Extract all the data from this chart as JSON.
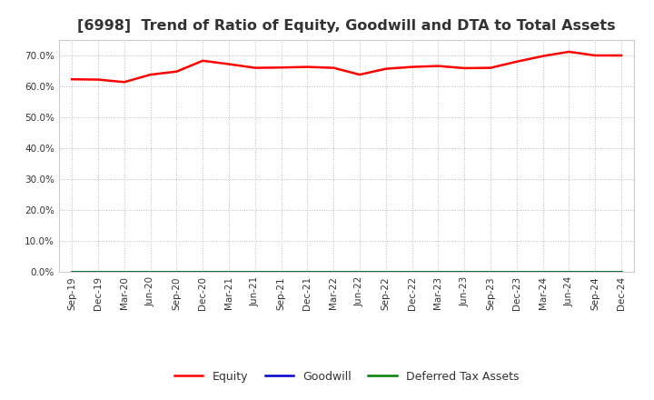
{
  "title": "[6998]  Trend of Ratio of Equity, Goodwill and DTA to Total Assets",
  "x_labels": [
    "Sep-19",
    "Dec-19",
    "Mar-20",
    "Jun-20",
    "Sep-20",
    "Dec-20",
    "Mar-21",
    "Jun-21",
    "Sep-21",
    "Dec-21",
    "Mar-22",
    "Jun-22",
    "Sep-22",
    "Dec-22",
    "Mar-23",
    "Jun-23",
    "Sep-23",
    "Dec-23",
    "Mar-24",
    "Jun-24",
    "Sep-24",
    "Dec-24"
  ],
  "equity": [
    0.623,
    0.622,
    0.614,
    0.638,
    0.648,
    0.683,
    0.672,
    0.66,
    0.661,
    0.663,
    0.66,
    0.638,
    0.657,
    0.663,
    0.666,
    0.659,
    0.66,
    0.68,
    0.698,
    0.712,
    0.7,
    0.7
  ],
  "goodwill": [
    0.0,
    0.0,
    0.0,
    0.0,
    0.0,
    0.0,
    0.0,
    0.0,
    0.0,
    0.0,
    0.0,
    0.0,
    0.0,
    0.0,
    0.0,
    0.0,
    0.0,
    0.0,
    0.0,
    0.0,
    0.0,
    0.0
  ],
  "dta": [
    0.0,
    0.0,
    0.0,
    0.0,
    0.0,
    0.0,
    0.0,
    0.0,
    0.0,
    0.0,
    0.0,
    0.0,
    0.0,
    0.0,
    0.0,
    0.0,
    0.0,
    0.0,
    0.0,
    0.0,
    0.0,
    0.0
  ],
  "equity_color": "#FF0000",
  "goodwill_color": "#0000CC",
  "dta_color": "#008000",
  "ylim": [
    0.0,
    0.75
  ],
  "yticks": [
    0.0,
    0.1,
    0.2,
    0.3,
    0.4,
    0.5,
    0.6,
    0.7
  ],
  "background_color": "#FFFFFF",
  "plot_bg_color": "#FFFFFF",
  "grid_color": "#BBBBBB",
  "title_fontsize": 11.5,
  "title_color": "#333333",
  "tick_fontsize": 7.5,
  "legend_labels": [
    "Equity",
    "Goodwill",
    "Deferred Tax Assets"
  ],
  "legend_fontsize": 9
}
